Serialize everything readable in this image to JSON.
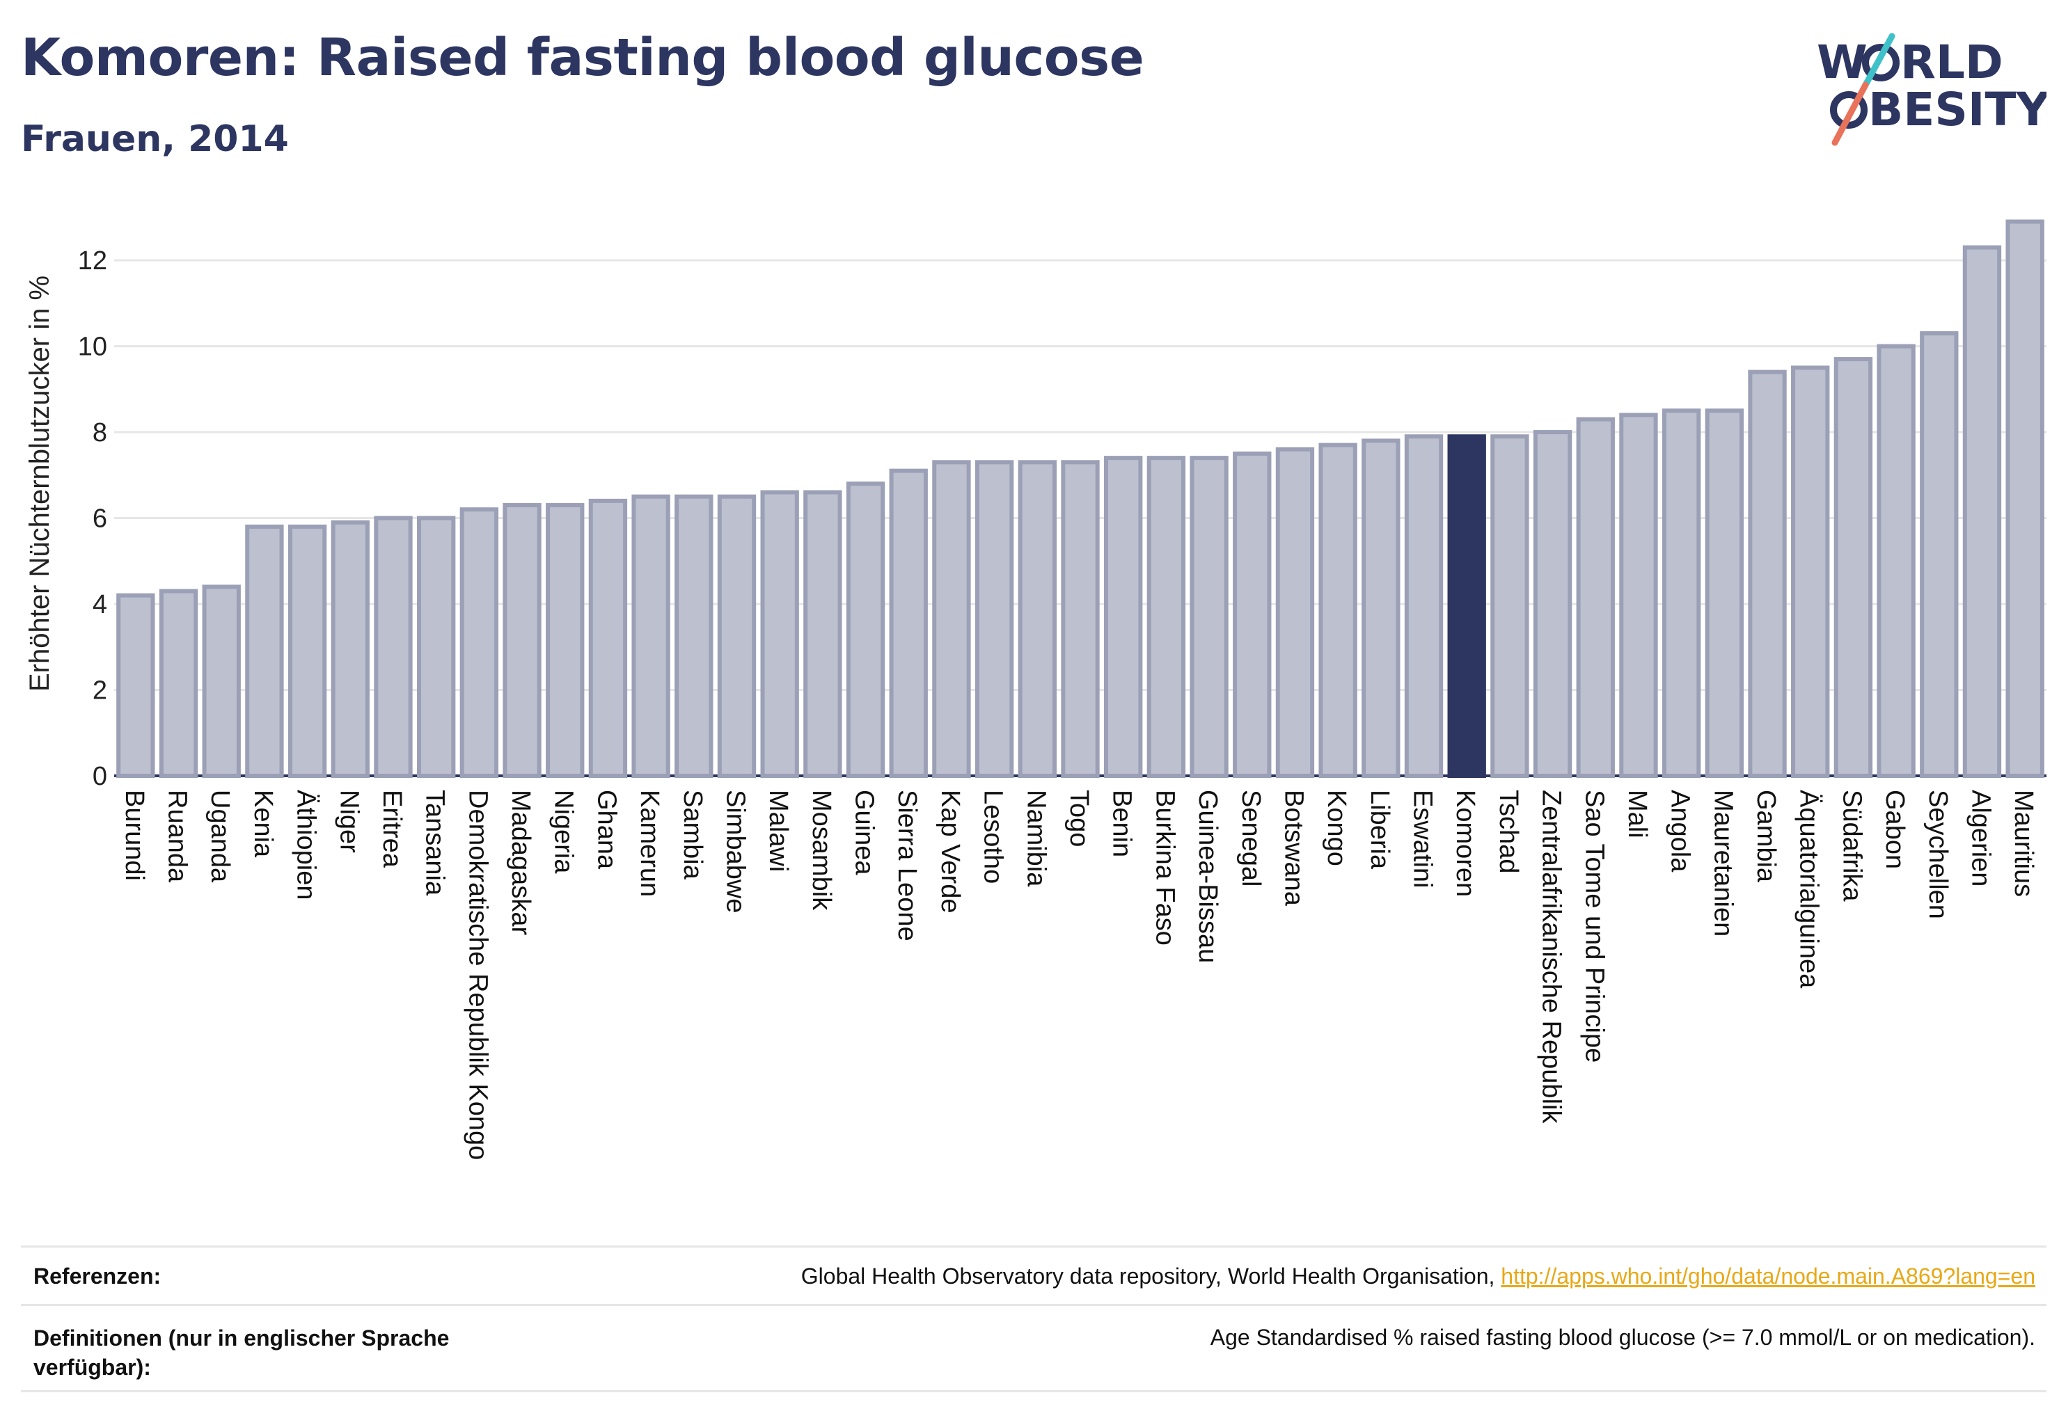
{
  "title": "Komoren: Raised fasting blood glucose",
  "subtitle": "Frauen, 2014",
  "logo": {
    "line1": "W",
    "line1b": "RLD",
    "line2b": "BESITY",
    "accent_colors": [
      "#3fc1c9",
      "#e8735a"
    ],
    "text_color": "#2d3561"
  },
  "colors": {
    "bar": "#bcc0cf",
    "bar_border": "#9ba0b6",
    "highlight": "#2d3561",
    "grid": "#e6e6e6",
    "title": "#2d3561",
    "link": "#e8a817"
  },
  "chart_data": {
    "type": "bar",
    "ylabel": "Erhöhter Nüchternblutzucker in %",
    "ylim": [
      0,
      13.2
    ],
    "yticks": [
      0,
      2,
      4,
      6,
      8,
      10,
      12
    ],
    "highlight": "Komoren",
    "categories": [
      "Burundi",
      "Ruanda",
      "Uganda",
      "Kenia",
      "Äthiopien",
      "Niger",
      "Eritrea",
      "Tansania",
      "Demokratische Republik Kongo",
      "Madagaskar",
      "Nigeria",
      "Ghana",
      "Kamerun",
      "Sambia",
      "Simbabwe",
      "Malawi",
      "Mosambik",
      "Guinea",
      "Sierra Leone",
      "Kap Verde",
      "Lesotho",
      "Namibia",
      "Togo",
      "Benin",
      "Burkina Faso",
      "Guinea-Bissau",
      "Senegal",
      "Botswana",
      "Kongo",
      "Liberia",
      "Eswatini",
      "Komoren",
      "Tschad",
      "Zentralafrikanische Republik",
      "Sao Tome und Principe",
      "Mali",
      "Angola",
      "Mauretanien",
      "Gambia",
      "Äquatorialguinea",
      "Südafrika",
      "Gabon",
      "Seychellen",
      "Algerien",
      "Mauritius"
    ],
    "values": [
      4.2,
      4.3,
      4.4,
      5.8,
      5.8,
      5.9,
      6.0,
      6.0,
      6.2,
      6.3,
      6.3,
      6.4,
      6.5,
      6.5,
      6.5,
      6.6,
      6.6,
      6.8,
      7.1,
      7.3,
      7.3,
      7.3,
      7.3,
      7.4,
      7.4,
      7.4,
      7.5,
      7.6,
      7.7,
      7.8,
      7.9,
      7.9,
      7.9,
      8.0,
      8.3,
      8.4,
      8.5,
      8.5,
      9.4,
      9.5,
      9.7,
      10.0,
      10.3,
      12.3,
      12.9
    ]
  },
  "footer": {
    "ref_label": "Referenzen:",
    "ref_text": "Global Health Observatory data repository, World Health Organisation,",
    "ref_link": "http://apps.who.int/gho/data/node.main.A869?lang=en",
    "def_label_1": "Definitionen (nur in englischer Sprache",
    "def_label_2": "verfügbar):",
    "def_text": "Age Standardised % raised fasting blood glucose (>= 7.0 mmol/L or on medication)."
  }
}
